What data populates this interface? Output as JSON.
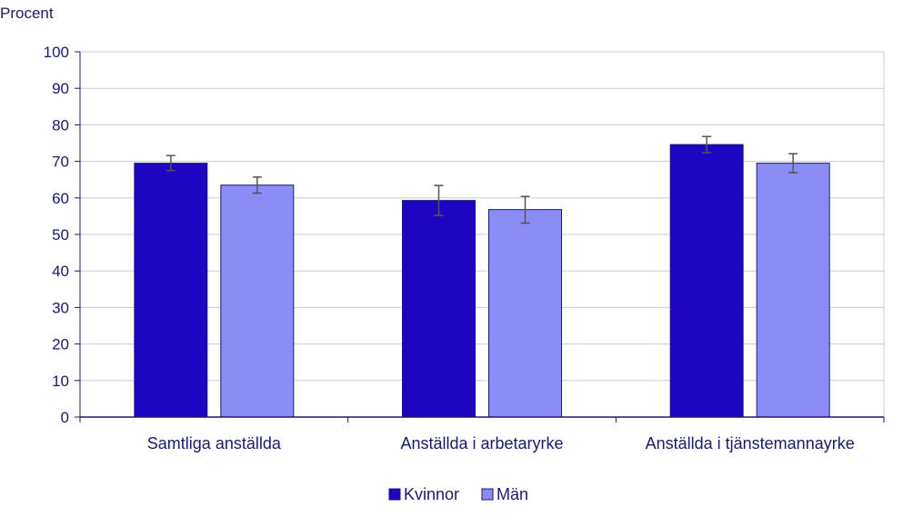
{
  "chart_data": {
    "type": "bar",
    "ylabel": "Procent",
    "ylim": [
      0,
      100
    ],
    "yticks": [
      0,
      10,
      20,
      30,
      40,
      50,
      60,
      70,
      80,
      90,
      100
    ],
    "grid": true,
    "legend_position": "bottom",
    "categories": [
      "Samtliga anställda",
      "Anställda i arbetaryrke",
      "Anställda i tjänstemannayrke"
    ],
    "series": [
      {
        "name": "Kvinnor",
        "color": "#1d05c2",
        "values": [
          69.5,
          59.3,
          74.6
        ],
        "error_low": [
          67.5,
          55.2,
          72.4
        ],
        "error_high": [
          71.6,
          63.4,
          76.8
        ]
      },
      {
        "name": "Män",
        "color": "#8b8cf6",
        "values": [
          63.5,
          56.8,
          69.5
        ],
        "error_low": [
          61.3,
          53.1,
          66.9
        ],
        "error_high": [
          65.7,
          60.4,
          72.1
        ]
      }
    ]
  }
}
